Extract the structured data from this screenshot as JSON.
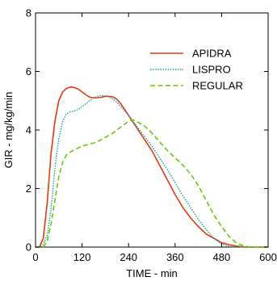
{
  "chart_data": {
    "type": "line",
    "title": "",
    "xlabel": "TIME - min",
    "ylabel": "GIR - mg/kg/min",
    "xlim": [
      0,
      600
    ],
    "ylim": [
      0,
      8
    ],
    "x_ticks": [
      "0",
      "120",
      "240",
      "360",
      "480",
      "600"
    ],
    "y_ticks": [
      "0",
      "2",
      "4",
      "6",
      "8"
    ],
    "grid": false,
    "legend_position": "top-right",
    "series": [
      {
        "name": "APIDRA",
        "color": "#e8380d",
        "dash": "solid",
        "points": [
          [
            0,
            0
          ],
          [
            10,
            0
          ],
          [
            20,
            0.3
          ],
          [
            30,
            1.5
          ],
          [
            40,
            3.2
          ],
          [
            50,
            4.3
          ],
          [
            60,
            5.0
          ],
          [
            70,
            5.3
          ],
          [
            80,
            5.42
          ],
          [
            90,
            5.47
          ],
          [
            100,
            5.45
          ],
          [
            110,
            5.4
          ],
          [
            120,
            5.3
          ],
          [
            130,
            5.2
          ],
          [
            140,
            5.12
          ],
          [
            150,
            5.1
          ],
          [
            160,
            5.1
          ],
          [
            170,
            5.12
          ],
          [
            180,
            5.15
          ],
          [
            190,
            5.15
          ],
          [
            200,
            5.13
          ],
          [
            210,
            5.05
          ],
          [
            220,
            4.9
          ],
          [
            230,
            4.7
          ],
          [
            240,
            4.5
          ],
          [
            260,
            4.1
          ],
          [
            280,
            3.7
          ],
          [
            300,
            3.3
          ],
          [
            320,
            2.8
          ],
          [
            340,
            2.3
          ],
          [
            360,
            1.8
          ],
          [
            380,
            1.35
          ],
          [
            400,
            1.0
          ],
          [
            420,
            0.7
          ],
          [
            440,
            0.45
          ],
          [
            460,
            0.3
          ],
          [
            480,
            0.15
          ],
          [
            500,
            0.08
          ],
          [
            520,
            0.03
          ],
          [
            540,
            0
          ],
          [
            600,
            0
          ]
        ]
      },
      {
        "name": "LISPRO",
        "color": "#0aa5a5",
        "dash": "dotted",
        "points": [
          [
            0,
            0
          ],
          [
            10,
            0
          ],
          [
            20,
            0.1
          ],
          [
            30,
            0.4
          ],
          [
            40,
            1.3
          ],
          [
            50,
            2.7
          ],
          [
            60,
            3.7
          ],
          [
            70,
            4.3
          ],
          [
            80,
            4.55
          ],
          [
            90,
            4.62
          ],
          [
            100,
            4.65
          ],
          [
            110,
            4.7
          ],
          [
            120,
            4.8
          ],
          [
            130,
            4.9
          ],
          [
            140,
            5.0
          ],
          [
            150,
            5.1
          ],
          [
            160,
            5.15
          ],
          [
            170,
            5.18
          ],
          [
            180,
            5.17
          ],
          [
            190,
            5.12
          ],
          [
            200,
            5.05
          ],
          [
            210,
            4.95
          ],
          [
            220,
            4.8
          ],
          [
            230,
            4.65
          ],
          [
            240,
            4.5
          ],
          [
            260,
            4.15
          ],
          [
            280,
            3.8
          ],
          [
            300,
            3.45
          ],
          [
            320,
            3.05
          ],
          [
            340,
            2.65
          ],
          [
            360,
            2.2
          ],
          [
            380,
            1.75
          ],
          [
            400,
            1.35
          ],
          [
            420,
            0.95
          ],
          [
            440,
            0.6
          ],
          [
            460,
            0.3
          ],
          [
            480,
            0.1
          ],
          [
            500,
            0.02
          ],
          [
            520,
            0
          ],
          [
            600,
            0
          ]
        ]
      },
      {
        "name": "REGULAR",
        "color": "#66cc00",
        "dash": "dashed",
        "points": [
          [
            0,
            0
          ],
          [
            20,
            0
          ],
          [
            30,
            0.2
          ],
          [
            40,
            0.8
          ],
          [
            50,
            1.6
          ],
          [
            60,
            2.4
          ],
          [
            70,
            2.9
          ],
          [
            80,
            3.15
          ],
          [
            90,
            3.25
          ],
          [
            100,
            3.32
          ],
          [
            120,
            3.45
          ],
          [
            140,
            3.52
          ],
          [
            160,
            3.6
          ],
          [
            180,
            3.75
          ],
          [
            200,
            3.9
          ],
          [
            220,
            4.1
          ],
          [
            240,
            4.3
          ],
          [
            250,
            4.35
          ],
          [
            260,
            4.3
          ],
          [
            280,
            4.15
          ],
          [
            300,
            3.9
          ],
          [
            320,
            3.6
          ],
          [
            340,
            3.3
          ],
          [
            360,
            3.05
          ],
          [
            380,
            2.8
          ],
          [
            400,
            2.5
          ],
          [
            420,
            2.1
          ],
          [
            440,
            1.6
          ],
          [
            460,
            1.1
          ],
          [
            480,
            0.7
          ],
          [
            500,
            0.35
          ],
          [
            520,
            0.12
          ],
          [
            540,
            0.03
          ],
          [
            560,
            0
          ],
          [
            600,
            0
          ]
        ]
      }
    ]
  }
}
